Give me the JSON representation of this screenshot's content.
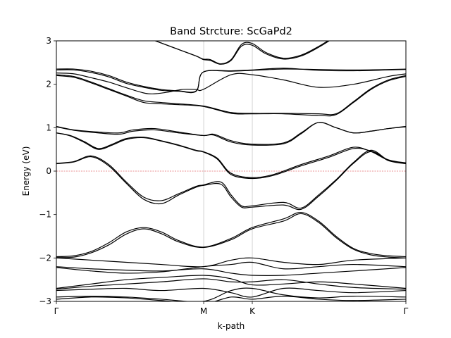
{
  "chart_data": {
    "type": "line",
    "title": "Band Strcture: ScGaPd2",
    "xlabel": "k-path",
    "ylabel": "Energy (eV)",
    "xlim": [
      0,
      1
    ],
    "ylim": [
      -3,
      3
    ],
    "grid": false,
    "legend": "none",
    "x_ticks": [
      {
        "pos": 0.0,
        "label": "Γ"
      },
      {
        "pos": 0.4215,
        "label": "M"
      },
      {
        "pos": 0.5605,
        "label": "K"
      },
      {
        "pos": 1.0,
        "label": "Γ"
      }
    ],
    "y_ticks": [
      {
        "value": -3,
        "label": "−3"
      },
      {
        "value": -2,
        "label": "−2"
      },
      {
        "value": -1,
        "label": "−1"
      },
      {
        "value": 0,
        "label": "0"
      },
      {
        "value": 1,
        "label": "1"
      },
      {
        "value": 2,
        "label": "2"
      },
      {
        "value": 3,
        "label": "3"
      }
    ],
    "vlines": [
      0.4215,
      0.5605
    ],
    "fermi_level": 0,
    "colors": {
      "bands": "#000000",
      "fermi": "#d62728",
      "vline": "#c8c8c8"
    },
    "series": [
      {
        "x": [
          0.25,
          0.3,
          0.35,
          0.4,
          0.42,
          0.44,
          0.47,
          0.5,
          0.53,
          0.56,
          0.6,
          0.65,
          0.7,
          0.75,
          0.8
        ],
        "y": [
          3.1,
          2.95,
          2.8,
          2.65,
          2.57,
          2.55,
          2.46,
          2.55,
          2.88,
          2.9,
          2.7,
          2.58,
          2.65,
          2.85,
          3.1
        ]
      },
      {
        "x": [
          0.25,
          0.3,
          0.35,
          0.4,
          0.42,
          0.44,
          0.47,
          0.5,
          0.53,
          0.56,
          0.6,
          0.65,
          0.7,
          0.75,
          0.8
        ],
        "y": [
          3.1,
          2.95,
          2.8,
          2.65,
          2.58,
          2.57,
          2.47,
          2.57,
          2.92,
          2.94,
          2.73,
          2.6,
          2.67,
          2.87,
          3.12
        ]
      },
      {
        "x": [
          0,
          0.05,
          0.1,
          0.15,
          0.2,
          0.25,
          0.3,
          0.35,
          0.4,
          0.42,
          0.5,
          0.56,
          0.65,
          0.75,
          0.85,
          0.95,
          1.0
        ],
        "y": [
          2.35,
          2.35,
          2.3,
          2.2,
          2.05,
          1.95,
          1.88,
          1.85,
          1.85,
          2.28,
          2.3,
          2.32,
          2.35,
          2.34,
          2.33,
          2.34,
          2.35
        ]
      },
      {
        "x": [
          0,
          0.05,
          0.1,
          0.15,
          0.2,
          0.25,
          0.3,
          0.35,
          0.4,
          0.42,
          0.5,
          0.56,
          0.65,
          0.75,
          0.85,
          0.95,
          1.0
        ],
        "y": [
          2.33,
          2.33,
          2.27,
          2.17,
          2.02,
          1.93,
          1.86,
          1.84,
          1.84,
          2.28,
          2.31,
          2.33,
          2.37,
          2.32,
          2.31,
          2.33,
          2.34
        ]
      },
      {
        "x": [
          0,
          0.05,
          0.1,
          0.15,
          0.2,
          0.25,
          0.28,
          0.32,
          0.36,
          0.4,
          0.42,
          0.5,
          0.56,
          0.65,
          0.75,
          0.85,
          0.95,
          1.0
        ],
        "y": [
          2.26,
          2.24,
          2.15,
          2.05,
          1.92,
          1.8,
          1.78,
          1.82,
          1.88,
          1.88,
          1.88,
          2.22,
          2.22,
          2.1,
          1.93,
          2.0,
          2.18,
          2.24
        ]
      },
      {
        "x": [
          0,
          0.05,
          0.1,
          0.15,
          0.2,
          0.25,
          0.3,
          0.35,
          0.42,
          0.5,
          0.56,
          0.65,
          0.75,
          0.8,
          0.85,
          0.9,
          0.95,
          1.0
        ],
        "y": [
          2.22,
          2.18,
          2.05,
          1.9,
          1.75,
          1.62,
          1.58,
          1.55,
          1.5,
          1.35,
          1.33,
          1.33,
          1.32,
          1.32,
          1.6,
          1.9,
          2.1,
          2.2
        ]
      },
      {
        "x": [
          0,
          0.05,
          0.1,
          0.15,
          0.2,
          0.25,
          0.3,
          0.35,
          0.42,
          0.5,
          0.56,
          0.65,
          0.75,
          0.8,
          0.85,
          0.9,
          0.95,
          1.0
        ],
        "y": [
          2.2,
          2.16,
          2.03,
          1.88,
          1.73,
          1.58,
          1.55,
          1.53,
          1.49,
          1.33,
          1.32,
          1.32,
          1.28,
          1.3,
          1.58,
          1.88,
          2.08,
          2.18
        ]
      },
      {
        "x": [
          0,
          0.05,
          0.12,
          0.18,
          0.22,
          0.28,
          0.35,
          0.42,
          0.45,
          0.5,
          0.56,
          0.65,
          0.7,
          0.75,
          0.8,
          0.85,
          0.9,
          0.95,
          1.0
        ],
        "y": [
          1.03,
          0.95,
          0.9,
          0.88,
          0.95,
          0.98,
          0.9,
          0.82,
          0.85,
          0.7,
          0.62,
          0.65,
          0.88,
          1.12,
          1.0,
          0.88,
          0.92,
          0.98,
          1.03
        ]
      },
      {
        "x": [
          0,
          0.05,
          0.12,
          0.18,
          0.22,
          0.28,
          0.35,
          0.42,
          0.45,
          0.5,
          0.56,
          0.65,
          0.7,
          0.75,
          0.8,
          0.85,
          0.9,
          0.95,
          1.0
        ],
        "y": [
          1.02,
          0.94,
          0.88,
          0.85,
          0.92,
          0.95,
          0.88,
          0.82,
          0.83,
          0.67,
          0.6,
          0.63,
          0.86,
          1.12,
          1.0,
          0.88,
          0.92,
          0.98,
          1.02
        ]
      },
      {
        "x": [
          0,
          0.04,
          0.08,
          0.12,
          0.16,
          0.2,
          0.25,
          0.3,
          0.35,
          0.4,
          0.42,
          0.46,
          0.5,
          0.56,
          0.62,
          0.7,
          0.78,
          0.85,
          0.9,
          0.95,
          1.0
        ],
        "y": [
          0.88,
          0.82,
          0.68,
          0.52,
          0.62,
          0.75,
          0.78,
          0.7,
          0.6,
          0.48,
          0.45,
          0.3,
          -0.05,
          -0.15,
          -0.08,
          0.15,
          0.35,
          0.55,
          0.45,
          0.25,
          0.18
        ]
      },
      {
        "x": [
          0,
          0.04,
          0.08,
          0.12,
          0.16,
          0.2,
          0.25,
          0.3,
          0.35,
          0.4,
          0.42,
          0.46,
          0.5,
          0.56,
          0.62,
          0.7,
          0.78,
          0.85,
          0.9,
          0.95,
          1.0
        ],
        "y": [
          0.88,
          0.81,
          0.66,
          0.5,
          0.6,
          0.73,
          0.77,
          0.69,
          0.59,
          0.47,
          0.44,
          0.28,
          -0.08,
          -0.17,
          -0.1,
          0.12,
          0.32,
          0.52,
          0.46,
          0.26,
          0.19
        ]
      },
      {
        "x": [
          0,
          0.05,
          0.1,
          0.15,
          0.2,
          0.25,
          0.3,
          0.35,
          0.4,
          0.42,
          0.47,
          0.5,
          0.53,
          0.56,
          0.65,
          0.7,
          0.75,
          0.8,
          0.85,
          0.9,
          0.95,
          1.0
        ],
        "y": [
          0.18,
          0.22,
          0.35,
          0.15,
          -0.25,
          -0.6,
          -0.68,
          -0.52,
          -0.35,
          -0.32,
          -0.25,
          -0.55,
          -0.8,
          -0.8,
          -0.72,
          -0.85,
          -0.55,
          -0.2,
          0.2,
          0.48,
          0.25,
          0.18
        ]
      },
      {
        "x": [
          0,
          0.05,
          0.1,
          0.15,
          0.2,
          0.25,
          0.3,
          0.35,
          0.4,
          0.42,
          0.47,
          0.5,
          0.53,
          0.56,
          0.65,
          0.7,
          0.75,
          0.8,
          0.85,
          0.9,
          0.95,
          1.0
        ],
        "y": [
          0.17,
          0.21,
          0.33,
          0.12,
          -0.28,
          -0.65,
          -0.75,
          -0.55,
          -0.37,
          -0.33,
          -0.3,
          -0.6,
          -0.83,
          -0.83,
          -0.78,
          -0.88,
          -0.58,
          -0.22,
          0.18,
          0.45,
          0.24,
          0.17
        ]
      },
      {
        "x": [
          0,
          0.05,
          0.1,
          0.15,
          0.2,
          0.25,
          0.3,
          0.35,
          0.42,
          0.5,
          0.56,
          0.65,
          0.7,
          0.75,
          0.8,
          0.85,
          0.9,
          0.95,
          1.0
        ],
        "y": [
          -1.97,
          -1.95,
          -1.85,
          -1.65,
          -1.4,
          -1.3,
          -1.4,
          -1.6,
          -1.75,
          -1.55,
          -1.3,
          -1.1,
          -0.95,
          -1.15,
          -1.5,
          -1.78,
          -1.9,
          -1.95,
          -1.97
        ]
      },
      {
        "x": [
          0,
          0.05,
          0.1,
          0.15,
          0.2,
          0.25,
          0.3,
          0.35,
          0.42,
          0.5,
          0.56,
          0.65,
          0.7,
          0.75,
          0.8,
          0.85,
          0.9,
          0.95,
          1.0
        ],
        "y": [
          -1.99,
          -1.98,
          -1.88,
          -1.7,
          -1.45,
          -1.33,
          -1.44,
          -1.63,
          -1.76,
          -1.58,
          -1.33,
          -1.15,
          -0.98,
          -1.18,
          -1.53,
          -1.8,
          -1.93,
          -1.98,
          -2.0
        ]
      },
      {
        "x": [
          0,
          0.1,
          0.2,
          0.3,
          0.42,
          0.5,
          0.56,
          0.65,
          0.75,
          0.85,
          1.0
        ],
        "y": [
          -2.0,
          -2.05,
          -2.1,
          -2.15,
          -2.2,
          -2.05,
          -2.0,
          -2.1,
          -2.15,
          -2.05,
          -2.0
        ]
      },
      {
        "x": [
          0,
          0.1,
          0.2,
          0.3,
          0.42,
          0.5,
          0.56,
          0.65,
          0.75,
          0.85,
          1.0
        ],
        "y": [
          -2.2,
          -2.25,
          -2.28,
          -2.3,
          -2.25,
          -2.35,
          -2.4,
          -2.4,
          -2.35,
          -2.3,
          -2.22
        ]
      },
      {
        "x": [
          0,
          0.1,
          0.2,
          0.3,
          0.42,
          0.5,
          0.56,
          0.65,
          0.75,
          0.85,
          1.0
        ],
        "y": [
          -2.22,
          -2.3,
          -2.35,
          -2.32,
          -2.2,
          -2.15,
          -2.1,
          -2.25,
          -2.2,
          -2.15,
          -2.2
        ]
      },
      {
        "x": [
          0,
          0.1,
          0.2,
          0.3,
          0.42,
          0.5,
          0.56,
          0.65,
          0.75,
          0.85,
          1.0
        ],
        "y": [
          -2.7,
          -2.6,
          -2.5,
          -2.45,
          -2.4,
          -2.48,
          -2.62,
          -2.6,
          -2.55,
          -2.6,
          -2.7
        ]
      },
      {
        "x": [
          0,
          0.1,
          0.2,
          0.3,
          0.42,
          0.5,
          0.56,
          0.65,
          0.75,
          0.85,
          1.0
        ],
        "y": [
          -2.72,
          -2.65,
          -2.6,
          -2.55,
          -2.48,
          -2.55,
          -2.55,
          -2.5,
          -2.6,
          -2.68,
          -2.72
        ]
      },
      {
        "x": [
          0,
          0.1,
          0.2,
          0.3,
          0.42,
          0.5,
          0.56,
          0.65,
          0.75,
          0.85,
          1.0
        ],
        "y": [
          -2.75,
          -2.72,
          -2.7,
          -2.75,
          -2.7,
          -2.8,
          -2.9,
          -2.7,
          -2.75,
          -2.8,
          -2.75
        ]
      },
      {
        "x": [
          0,
          0.1,
          0.2,
          0.3,
          0.42,
          0.5,
          0.56,
          0.65,
          0.75,
          0.85,
          1.0
        ],
        "y": [
          -2.9,
          -2.88,
          -2.9,
          -2.95,
          -3.0,
          -2.75,
          -2.7,
          -2.85,
          -2.92,
          -2.88,
          -2.9
        ]
      },
      {
        "x": [
          0,
          0.1,
          0.2,
          0.3,
          0.42,
          0.5,
          0.56,
          0.65,
          0.75,
          0.85,
          1.0
        ],
        "y": [
          -2.95,
          -2.9,
          -2.92,
          -2.98,
          -3.05,
          -2.9,
          -2.95,
          -2.88,
          -2.95,
          -2.98,
          -2.95
        ]
      }
    ]
  }
}
